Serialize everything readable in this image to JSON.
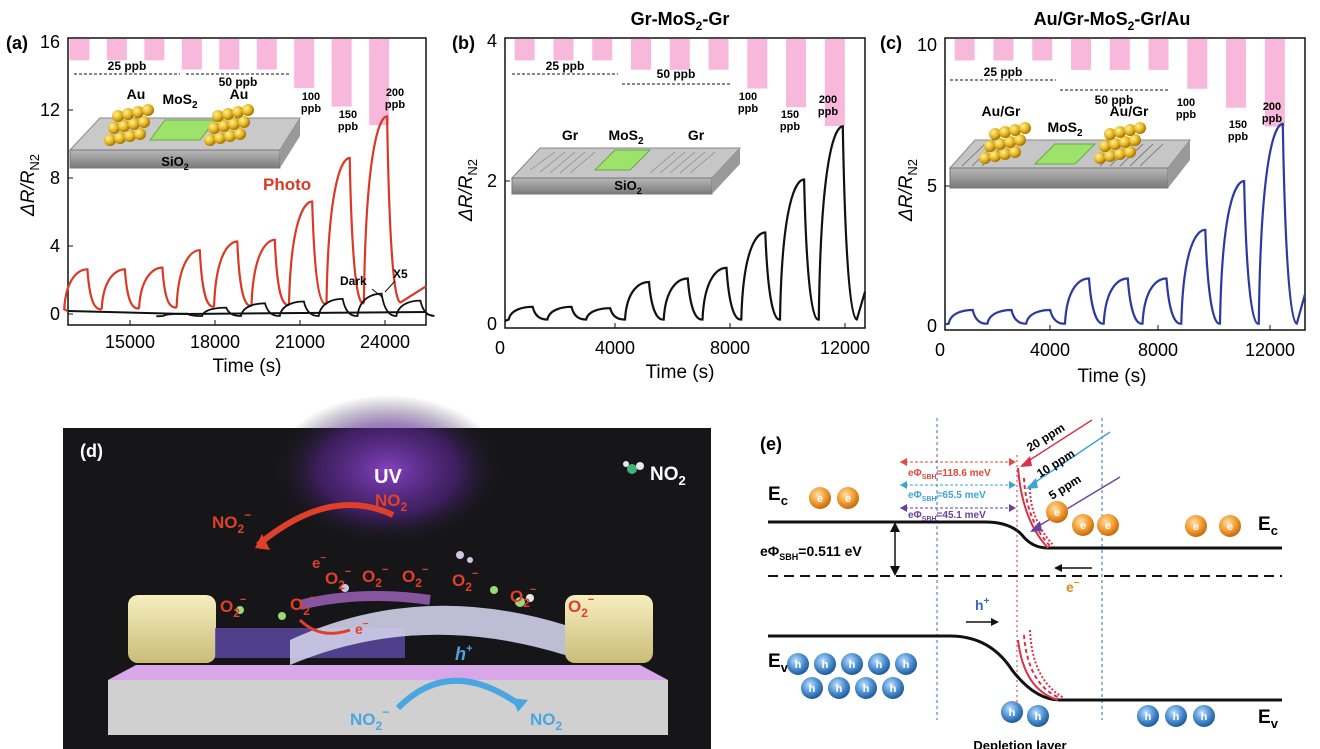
{
  "panels": {
    "a": {
      "tag": "(a)",
      "ylabel": "ΔR/R",
      "ylabel_sub": "N2",
      "xlabel": "Time (s)",
      "yticks": [
        "0",
        "4",
        "8",
        "12",
        "16"
      ],
      "xticks": [
        "15000",
        "18000",
        "21000",
        "24000"
      ],
      "photo_label": "Photo",
      "dark_label": "Dark",
      "x5_label": "X5",
      "inset": {
        "au_left": "Au",
        "mos2": "MoS",
        "mos2_sub": "2",
        "au_right": "Au",
        "sio2": "SiO",
        "sio2_sub": "2"
      }
    },
    "b": {
      "tag": "(b)",
      "title": "Gr-MoS",
      "title_sub": "2",
      "title_tail": "-Gr",
      "ylabel": "ΔR/R",
      "ylabel_sub": "N2",
      "xlabel": "Time (s)",
      "yticks": [
        "0",
        "2",
        "4"
      ],
      "xticks": [
        "0",
        "4000",
        "8000",
        "12000"
      ],
      "inset": {
        "gr_left": "Gr",
        "mos2": "MoS",
        "mos2_sub": "2",
        "gr_right": "Gr",
        "sio2": "SiO",
        "sio2_sub": "2"
      }
    },
    "c": {
      "tag": "(c)",
      "title": "Au/Gr-MoS",
      "title_sub": "2",
      "title_tail": "-Gr/Au",
      "ylabel": "ΔR/R",
      "ylabel_sub": "N2",
      "xlabel": "Time (s)",
      "yticks": [
        "0",
        "5",
        "10"
      ],
      "xticks": [
        "0",
        "4000",
        "8000",
        "12000"
      ],
      "inset": {
        "left": "Au/Gr",
        "mos2": "MoS",
        "mos2_sub": "2",
        "right": "Au/Gr"
      }
    },
    "d": {
      "tag": "(d)",
      "uv": "UV",
      "no2_legend": "NO",
      "no2_legend_sub": "2"
    },
    "e": {
      "tag": "(e)",
      "ec_left": "E",
      "ec_sub": "c",
      "ec_right": "E",
      "ev_left": "E",
      "ev_sub": "v",
      "ev_right": "E",
      "sbh_main": "eΦ",
      "sbh_main_sub": "SBH",
      "sbh_main_val": "=0.511 eV",
      "sbh1": "=118.6 meV",
      "sbh2": "=65.5 meV",
      "sbh3": "=45.1 meV",
      "ppm20": "20 ppm",
      "ppm10": "10 ppm",
      "ppm5": "5 ppm",
      "hplus": "h",
      "eminus": "e",
      "depletion": "Depletion layer"
    }
  },
  "concentration_labels": {
    "c25": "25 ppb",
    "c50": "50 ppb",
    "c100": [
      "100",
      "ppb"
    ],
    "c150": [
      "150",
      "ppb"
    ],
    "c200": [
      "200",
      "ppb"
    ]
  },
  "colors": {
    "photo_red": "#d93a25",
    "dark_black": "#111111",
    "blue_series": "#2c3a9e",
    "pink_bar": "#f7b8dc",
    "band_red": "#d8324a",
    "sbh1": "#e24a3b",
    "sbh2": "#3ba5d8",
    "sbh3": "#6b3fa0"
  },
  "chart_data": [
    {
      "panel": "a",
      "type": "line",
      "xlabel": "Time (s)",
      "ylabel": "ΔR/RN2",
      "xlim": [
        12300,
        25200
      ],
      "ylim": [
        -0.5,
        16
      ],
      "concentration_ppb": [
        25,
        25,
        25,
        50,
        50,
        50,
        100,
        150,
        200
      ],
      "series": [
        {
          "name": "Photo",
          "x": [
            13000,
            14350,
            15700,
            17050,
            18400,
            19750,
            21100,
            22450,
            23800
          ],
          "values": [
            2.7,
            2.7,
            2.8,
            3.8,
            4.3,
            4.4,
            6.6,
            9.1,
            11.5
          ]
        },
        {
          "name": "Dark",
          "x": [
            16600,
            18000,
            19400,
            20800,
            22200,
            23600,
            25000
          ],
          "values": [
            0.15,
            0.5,
            0.75,
            0.85,
            1.0,
            1.3,
            0.9
          ]
        }
      ]
    },
    {
      "panel": "b",
      "type": "line",
      "xlabel": "Time (s)",
      "ylabel": "ΔR/RN2",
      "xlim": [
        0,
        13000
      ],
      "ylim": [
        -0.1,
        4
      ],
      "concentration_ppb": [
        25,
        25,
        25,
        50,
        50,
        50,
        100,
        150,
        200
      ],
      "series": [
        {
          "name": "",
          "x": [
            1000,
            2400,
            3800,
            5200,
            6600,
            8000,
            9400,
            10800,
            12200
          ],
          "values": [
            0.2,
            0.2,
            0.18,
            0.55,
            0.6,
            0.75,
            1.25,
            2.0,
            2.75
          ]
        }
      ]
    },
    {
      "panel": "c",
      "type": "line",
      "xlabel": "Time (s)",
      "ylabel": "ΔR/RN2",
      "xlim": [
        0,
        13000
      ],
      "ylim": [
        -0.2,
        10
      ],
      "concentration_ppb": [
        25,
        25,
        25,
        50,
        50,
        50,
        100,
        150,
        200
      ],
      "series": [
        {
          "name": "",
          "x": [
            1000,
            2400,
            3800,
            5200,
            6600,
            8000,
            9400,
            10800,
            12200
          ],
          "values": [
            0.5,
            0.5,
            0.5,
            1.6,
            1.6,
            1.6,
            3.3,
            5.0,
            7.0
          ]
        }
      ]
    }
  ]
}
